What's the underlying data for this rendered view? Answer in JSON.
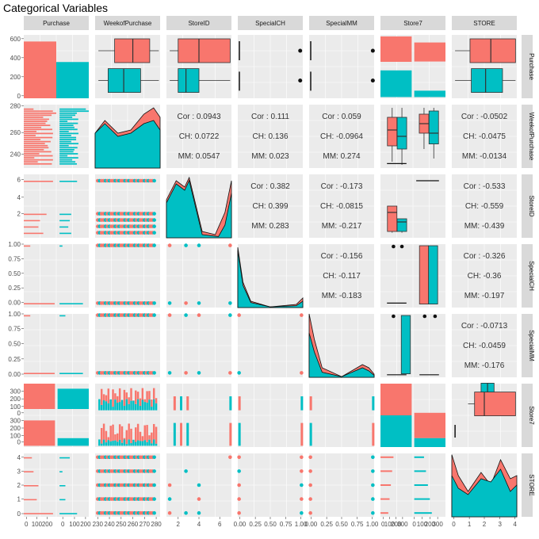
{
  "title": "Categorical Variables",
  "colors": {
    "CH": "#F8766D",
    "MM": "#00BFC4",
    "panel_bg": "#EBEBEB",
    "strip_bg": "#D9D9D9",
    "grid": "#FFFFFF"
  },
  "chart_data": {
    "type": "pairs",
    "variables": [
      "Purchase",
      "WeekofPurchase",
      "StoreID",
      "SpecialCH",
      "SpecialMM",
      "Store7",
      "STORE"
    ],
    "groups": [
      "CH",
      "MM"
    ],
    "x_ticks": {
      "Purchase": [
        "0",
        "100",
        "200",
        "0",
        "100",
        "200"
      ],
      "WeekofPurchase": [
        "230",
        "240",
        "250",
        "260",
        "270",
        "280"
      ],
      "StoreID": [
        "2",
        "4",
        "6"
      ],
      "SpecialCH": [
        "0.00",
        "0.25",
        "0.50",
        "0.75",
        "1.00"
      ],
      "SpecialMM": [
        "0.00",
        "0.25",
        "0.50",
        "0.75",
        "1.00"
      ],
      "Store7": [
        "0",
        "100",
        "200",
        "300",
        "0",
        "100",
        "200",
        "300"
      ],
      "STORE": [
        "0",
        "1",
        "2",
        "3",
        "4"
      ]
    },
    "y_ticks": {
      "Purchase": [
        "0",
        "200",
        "400",
        "600"
      ],
      "WeekofPurchase": [
        "240",
        "260",
        "280"
      ],
      "StoreID": [
        "2",
        "4",
        "6"
      ],
      "SpecialCH": [
        "0.00",
        "0.25",
        "0.50",
        "0.75",
        "1.00"
      ],
      "SpecialMM": [
        "0.00",
        "0.25",
        "0.50",
        "0.75",
        "1.00"
      ],
      "Store7": [
        "0",
        "100",
        "200",
        "300",
        "0",
        "100",
        "200",
        "300"
      ],
      "STORE": [
        "0",
        "1",
        "2",
        "3",
        "4"
      ]
    },
    "counts": {
      "Purchase": {
        "CH": 653,
        "MM": 417
      }
    },
    "correlations": [
      {
        "row": "WeekofPurchase",
        "col": "StoreID",
        "overall": "Cor : 0.0943",
        "CH": "CH: 0.0722",
        "MM": "MM: 0.0547"
      },
      {
        "row": "WeekofPurchase",
        "col": "SpecialCH",
        "overall": "Cor : 0.111",
        "CH": "CH: 0.136",
        "MM": "MM: 0.023"
      },
      {
        "row": "WeekofPurchase",
        "col": "SpecialMM",
        "overall": "Cor : 0.059",
        "CH": "CH: -0.0964",
        "MM": "MM: 0.274"
      },
      {
        "row": "WeekofPurchase",
        "col": "STORE",
        "overall": "Cor : -0.0502",
        "CH": "CH: -0.0475",
        "MM": "MM: -0.0134"
      },
      {
        "row": "StoreID",
        "col": "SpecialCH",
        "overall": "Cor : 0.382",
        "CH": "CH: 0.399",
        "MM": "MM: 0.283"
      },
      {
        "row": "StoreID",
        "col": "SpecialMM",
        "overall": "Cor : -0.173",
        "CH": "CH: -0.0815",
        "MM": "MM: -0.217"
      },
      {
        "row": "StoreID",
        "col": "STORE",
        "overall": "Cor : -0.533",
        "CH": "CH: -0.559",
        "MM": "MM: -0.439"
      },
      {
        "row": "SpecialCH",
        "col": "SpecialMM",
        "overall": "Cor : -0.156",
        "CH": "CH: -0.117",
        "MM": "MM: -0.183"
      },
      {
        "row": "SpecialCH",
        "col": "STORE",
        "overall": "Cor : -0.326",
        "CH": "CH: -0.36",
        "MM": "MM: -0.197"
      },
      {
        "row": "SpecialMM",
        "col": "STORE",
        "overall": "Cor : -0.0713",
        "CH": "CH: -0.0459",
        "MM": "MM: -0.176"
      }
    ]
  }
}
